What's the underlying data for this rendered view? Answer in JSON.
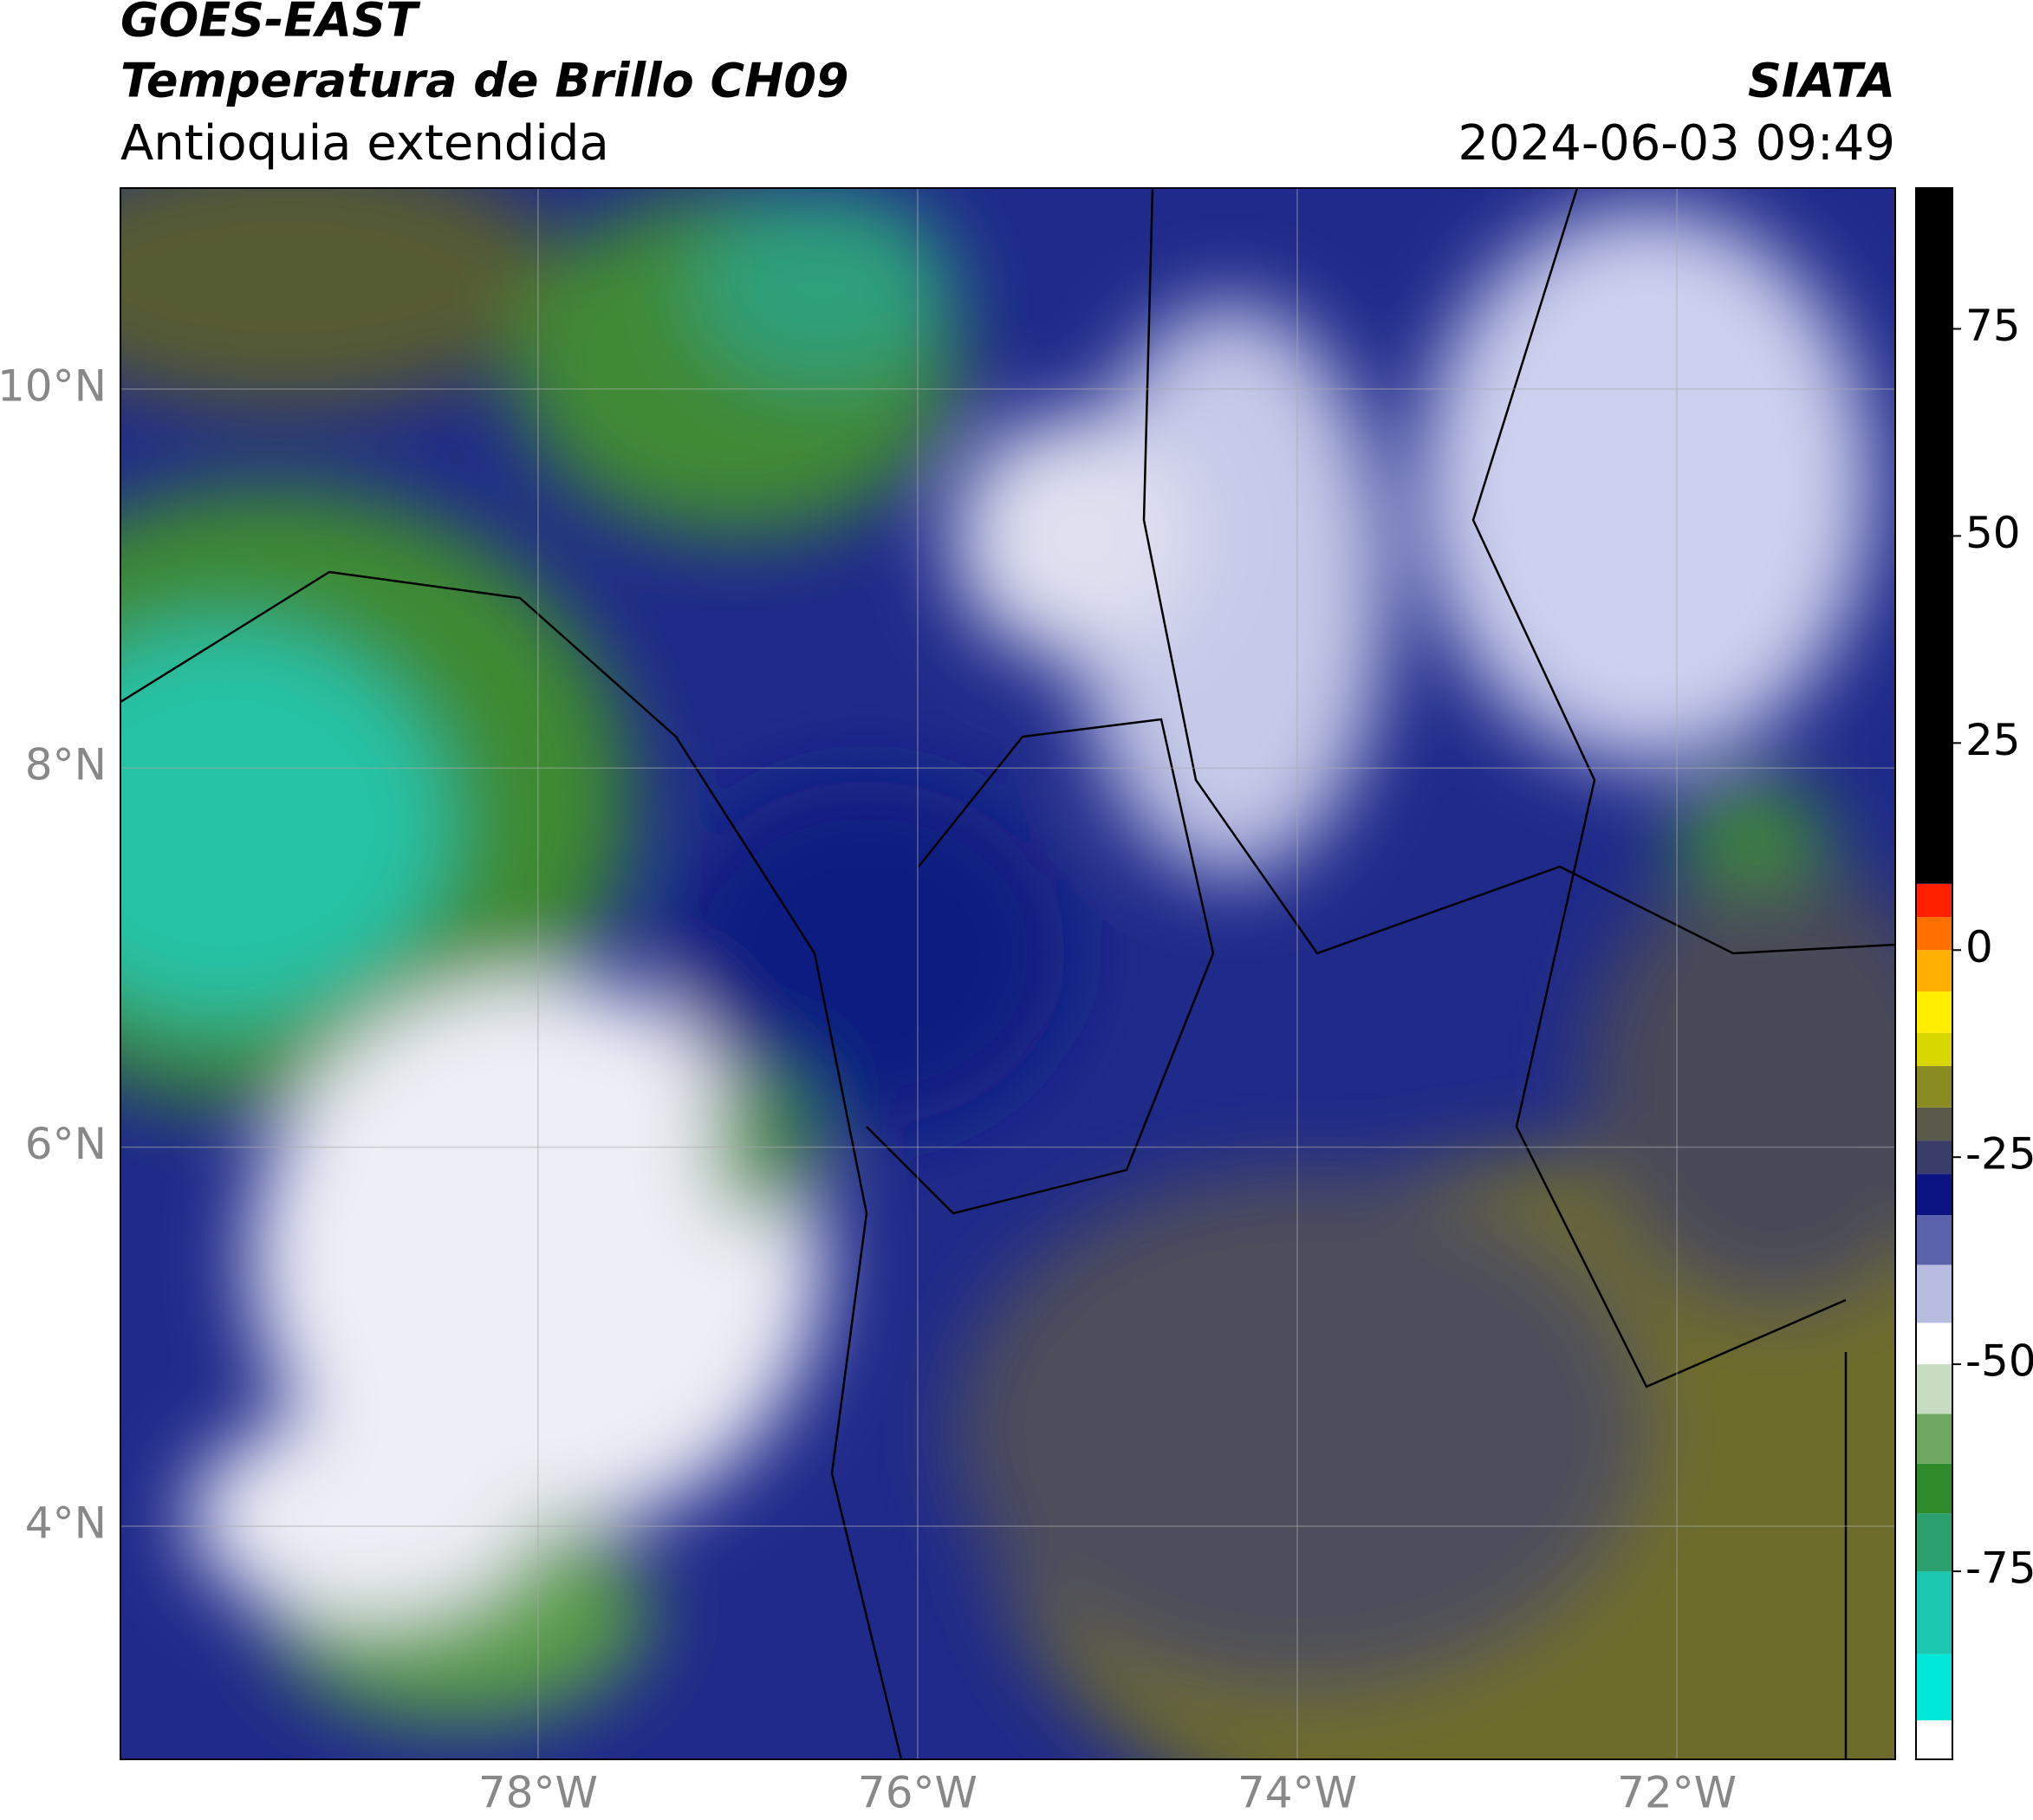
{
  "header": {
    "title": "GOES-EAST",
    "subtitle": "Temperatura de Brillo CH09",
    "region": "Antioquia extendida",
    "source": "SIATA",
    "datetime": "2024-06-03 09:49"
  },
  "map": {
    "xlim": [
      -80.2,
      -70.85
    ],
    "ylim": [
      2.77,
      11.06
    ],
    "xticks": [
      {
        "value": -78,
        "label": "78°W"
      },
      {
        "value": -76,
        "label": "76°W"
      },
      {
        "value": -74,
        "label": "74°W"
      },
      {
        "value": -72,
        "label": "72°W"
      }
    ],
    "yticks": [
      {
        "value": 4,
        "label": "4°N"
      },
      {
        "value": 6,
        "label": "6°N"
      },
      {
        "value": 8,
        "label": "8°N"
      },
      {
        "value": 10,
        "label": "10°N"
      }
    ],
    "grid": true
  },
  "colorbar": {
    "clim": [
      -97.7,
      92
    ],
    "ticks": [
      -75,
      -50,
      -25,
      0,
      25,
      50,
      75
    ],
    "colormap": [
      {
        "value": -97.7,
        "color": "#ffffff"
      },
      {
        "value": -93,
        "color": "#00e8dc"
      },
      {
        "value": -85,
        "color": "#1cc9b0"
      },
      {
        "value": -75,
        "color": "#2da070"
      },
      {
        "value": -68,
        "color": "#2f8a2a"
      },
      {
        "value": -62,
        "color": "#6fa860"
      },
      {
        "value": -56,
        "color": "#c7dcc0"
      },
      {
        "value": -50,
        "color": "#ffffff"
      },
      {
        "value": -45,
        "color": "#b8bce0"
      },
      {
        "value": -38,
        "color": "#5a62ac"
      },
      {
        "value": -32,
        "color": "#0c1484"
      },
      {
        "value": -27,
        "color": "#3a3d6a"
      },
      {
        "value": -23,
        "color": "#5a5a4a"
      },
      {
        "value": -19,
        "color": "#8a8a22"
      },
      {
        "value": -14,
        "color": "#d8d800"
      },
      {
        "value": -10,
        "color": "#ffee00"
      },
      {
        "value": -5,
        "color": "#ffb000"
      },
      {
        "value": 0,
        "color": "#ff7000"
      },
      {
        "value": 4,
        "color": "#ff2000"
      },
      {
        "value": 8,
        "color": "#000000"
      }
    ]
  }
}
